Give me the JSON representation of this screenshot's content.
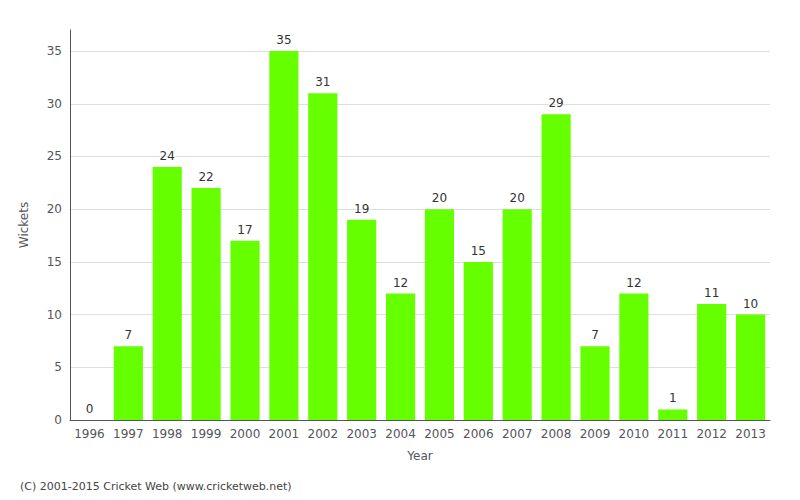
{
  "chart_data": {
    "type": "bar",
    "categories": [
      "1996",
      "1997",
      "1998",
      "1999",
      "2000",
      "2001",
      "2002",
      "2003",
      "2004",
      "2005",
      "2006",
      "2007",
      "2008",
      "2009",
      "2010",
      "2011",
      "2012",
      "2013"
    ],
    "values": [
      0,
      7,
      24,
      22,
      17,
      35,
      31,
      19,
      12,
      20,
      15,
      20,
      29,
      7,
      12,
      1,
      11,
      10
    ],
    "color": "#66ff00",
    "xlabel": "Year",
    "ylabel": "Wickets",
    "ylim": [
      0,
      37
    ],
    "yticks": [
      0,
      5,
      10,
      15,
      20,
      25,
      30,
      35
    ],
    "grid": true,
    "data_labels": true,
    "annotations": [
      "(C) 2001-2015 Cricket Web (www.cricketweb.net)"
    ]
  }
}
